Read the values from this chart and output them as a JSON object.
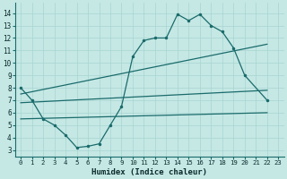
{
  "xlabel": "Humidex (Indice chaleur)",
  "ylabel": "",
  "bg_color": "#c5e8e5",
  "grid_color": "#a8d4d0",
  "line_color": "#1a6b6b",
  "xlim": [
    -0.5,
    23.5
  ],
  "ylim": [
    2.5,
    14.8
  ],
  "xticks": [
    0,
    1,
    2,
    3,
    4,
    5,
    6,
    7,
    8,
    9,
    10,
    11,
    12,
    13,
    14,
    15,
    16,
    17,
    18,
    19,
    20,
    21,
    22,
    23
  ],
  "yticks": [
    3,
    4,
    5,
    6,
    7,
    8,
    9,
    10,
    11,
    12,
    13,
    14
  ],
  "line1_x": [
    0,
    1,
    2,
    3,
    4,
    5,
    6,
    7,
    8,
    9,
    10,
    11,
    12,
    13,
    14,
    15,
    16,
    17,
    18,
    19,
    20,
    22
  ],
  "line1_y": [
    8.0,
    7.0,
    5.5,
    5.0,
    4.2,
    3.2,
    3.3,
    3.5,
    5.0,
    6.5,
    10.5,
    11.8,
    12.0,
    12.0,
    13.9,
    13.4,
    13.9,
    13.0,
    12.5,
    11.2,
    9.0,
    7.0
  ],
  "line2_x": [
    0,
    22
  ],
  "line2_y": [
    7.5,
    11.5
  ],
  "line3_x": [
    0,
    22
  ],
  "line3_y": [
    5.5,
    6.0
  ],
  "line4_x": [
    0,
    22
  ],
  "line4_y": [
    6.8,
    7.8
  ],
  "figwidth": 3.2,
  "figheight": 2.0,
  "dpi": 100
}
